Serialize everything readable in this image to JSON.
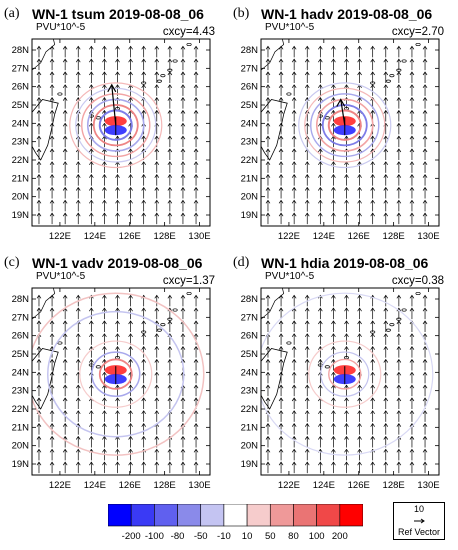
{
  "figure": {
    "panels": [
      {
        "label": "(a)",
        "title": "WN-1 tsum 2019-08-08_06",
        "unit": "PVU*10^-5",
        "cxcy": "cxcy=4.43"
      },
      {
        "label": "(b)",
        "title": "WN-1 hadv 2019-08-08_06",
        "unit": "PVU*10^-5",
        "cxcy": "cxcy=2.70"
      },
      {
        "label": "(c)",
        "title": "WN-1 vadv 2019-08-08_06",
        "unit": "PVU*10^-5",
        "cxcy": "cxcy=1.37"
      },
      {
        "label": "(d)",
        "title": "WN-1 hdia 2019-08-08_06",
        "unit": "PVU*10^-5",
        "cxcy": "cxcy=0.38"
      }
    ],
    "x_ticks": [
      "122E",
      "124E",
      "126E",
      "128E",
      "130E"
    ],
    "y_ticks": [
      "28N",
      "27N",
      "26N",
      "25N",
      "24N",
      "23N",
      "22N",
      "21N",
      "20N",
      "19N"
    ],
    "colorbar": {
      "levels": [
        "-200",
        "-100",
        "-80",
        "-50",
        "-10",
        "10",
        "50",
        "80",
        "100",
        "200"
      ],
      "colors": [
        "#0000ff",
        "#3a3af5",
        "#6060ef",
        "#8a8aea",
        "#c4c4f2",
        "#ffffff",
        "#f6cccc",
        "#ef9999",
        "#ea7474",
        "#f04848",
        "#ff0000"
      ]
    },
    "ref_vector": {
      "value": "10",
      "label": "Ref Vector"
    }
  }
}
